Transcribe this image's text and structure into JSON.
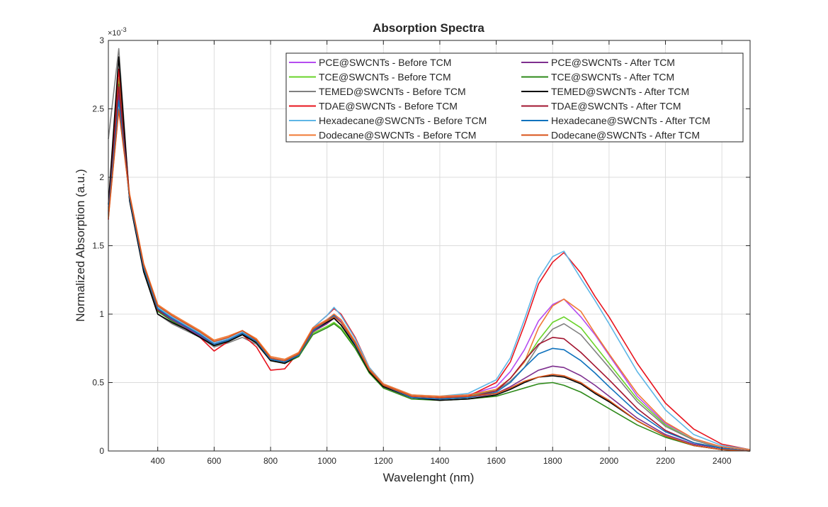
{
  "chart_data": {
    "type": "line",
    "title": "Absorption Spectra",
    "xlabel": "Wavelenght (nm)",
    "ylabel": "Normalized Absorption (a.u.)",
    "y_exponent_label": "×10",
    "y_exponent_power": "-3",
    "xlim": [
      225,
      2500
    ],
    "ylim": [
      0,
      0.003
    ],
    "x_ticks": [
      400,
      600,
      800,
      1000,
      1200,
      1400,
      1600,
      1800,
      2000,
      2200,
      2400
    ],
    "x_tick_labels": [
      "400",
      "600",
      "800",
      "1000",
      "1200",
      "1400",
      "1600",
      "1800",
      "2000",
      "2200",
      "2400"
    ],
    "y_ticks": [
      0,
      0.0005,
      0.001,
      0.0015,
      0.002,
      0.0025,
      0.003
    ],
    "y_tick_labels": [
      "0",
      "0.5",
      "1",
      "1.5",
      "2",
      "2.5",
      "3"
    ],
    "grid": true,
    "legend_position": "top-right",
    "x": [
      225,
      262,
      300,
      350,
      400,
      450,
      500,
      550,
      600,
      650,
      700,
      750,
      800,
      850,
      900,
      950,
      1000,
      1025,
      1050,
      1100,
      1150,
      1200,
      1300,
      1400,
      1500,
      1600,
      1650,
      1700,
      1750,
      1800,
      1840,
      1900,
      1950,
      2000,
      2100,
      2200,
      2300,
      2400,
      2500
    ],
    "series": [
      {
        "name": "PCE@SWCNTs - Before TCM",
        "color": "#b54cf0",
        "values": [
          0.00178,
          0.00262,
          0.00185,
          0.00135,
          0.00105,
          0.00098,
          0.00092,
          0.00086,
          0.00079,
          0.00082,
          0.00087,
          0.00081,
          0.00068,
          0.00066,
          0.00071,
          0.00089,
          0.00096,
          0.001,
          0.00095,
          0.00079,
          0.00059,
          0.00048,
          0.0004,
          0.00039,
          0.00041,
          0.00047,
          0.00058,
          0.00074,
          0.00095,
          0.00107,
          0.00111,
          0.00098,
          0.00085,
          0.0007,
          0.0004,
          0.0002,
          9e-05,
          3e-05,
          1e-05
        ]
      },
      {
        "name": "TCE@SWCNTs - Before TCM",
        "color": "#6ad42a",
        "values": [
          0.00177,
          0.00272,
          0.00186,
          0.00134,
          0.00104,
          0.00097,
          0.00091,
          0.00085,
          0.00078,
          0.00081,
          0.00086,
          0.0008,
          0.00067,
          0.00065,
          0.0007,
          0.00086,
          0.00091,
          0.00094,
          0.0009,
          0.00076,
          0.00057,
          0.00047,
          0.00039,
          0.00038,
          0.0004,
          0.00045,
          0.00053,
          0.00065,
          0.00081,
          0.00094,
          0.00098,
          0.0009,
          0.00077,
          0.00064,
          0.00038,
          0.00019,
          8e-05,
          2e-05,
          0.0
        ]
      },
      {
        "name": "TEMED@SWCNTs - Before TCM",
        "color": "#808080",
        "values": [
          0.00228,
          0.00294,
          0.00183,
          0.00132,
          0.001,
          0.00093,
          0.00088,
          0.00083,
          0.00076,
          0.00079,
          0.00083,
          0.00078,
          0.00066,
          0.00064,
          0.00069,
          0.00087,
          0.00093,
          0.00097,
          0.00092,
          0.00077,
          0.00058,
          0.00047,
          0.00039,
          0.00038,
          0.0004,
          0.00044,
          0.00051,
          0.00061,
          0.00077,
          0.00089,
          0.00093,
          0.00085,
          0.00073,
          0.00061,
          0.00036,
          0.00018,
          8e-05,
          2e-05,
          0.0
        ]
      },
      {
        "name": "TDAE@SWCNTs - Before TCM",
        "color": "#e8141e",
        "values": [
          0.00169,
          0.00279,
          0.00186,
          0.00133,
          0.00102,
          0.00096,
          0.0009,
          0.00083,
          0.00073,
          0.0008,
          0.00085,
          0.00076,
          0.00059,
          0.0006,
          0.00072,
          0.0009,
          0.00099,
          0.00104,
          0.001,
          0.00083,
          0.00061,
          0.00049,
          0.0004,
          0.00039,
          0.0004,
          0.0005,
          0.00065,
          0.00092,
          0.00122,
          0.00138,
          0.00145,
          0.0013,
          0.00113,
          0.00098,
          0.00064,
          0.00035,
          0.00016,
          5e-05,
          1e-05
        ]
      },
      {
        "name": "Hexadecane@SWCNTs - Before TCM",
        "color": "#5fb6e6",
        "values": [
          0.00176,
          0.00258,
          0.00185,
          0.00135,
          0.00105,
          0.00098,
          0.00092,
          0.00086,
          0.00079,
          0.00082,
          0.00087,
          0.00081,
          0.00068,
          0.00066,
          0.00071,
          0.0009,
          0.00099,
          0.00105,
          0.00099,
          0.00082,
          0.00061,
          0.00049,
          0.00041,
          0.0004,
          0.00042,
          0.00052,
          0.00068,
          0.00096,
          0.00126,
          0.00142,
          0.00146,
          0.00126,
          0.0011,
          0.00093,
          0.00058,
          0.0003,
          0.00012,
          4e-05,
          1e-05
        ]
      },
      {
        "name": "Dodecane@SWCNTs - Before TCM",
        "color": "#f07a34",
        "values": [
          0.0017,
          0.0025,
          0.00188,
          0.00137,
          0.00107,
          0.001,
          0.00094,
          0.00088,
          0.00081,
          0.00084,
          0.00088,
          0.00082,
          0.00069,
          0.00067,
          0.00072,
          0.0009,
          0.00096,
          0.001,
          0.00096,
          0.0008,
          0.0006,
          0.00049,
          0.00041,
          0.0004,
          0.00041,
          0.00045,
          0.00053,
          0.00065,
          0.0009,
          0.00106,
          0.00111,
          0.00102,
          0.00086,
          0.00071,
          0.00042,
          0.00021,
          9e-05,
          3e-05,
          1e-05
        ]
      },
      {
        "name": "PCE@SWCNTs - After TCM",
        "color": "#7e2f8e",
        "values": [
          0.00173,
          0.0026,
          0.00184,
          0.00134,
          0.00103,
          0.00096,
          0.0009,
          0.00084,
          0.00078,
          0.00081,
          0.00086,
          0.0008,
          0.00067,
          0.00065,
          0.0007,
          0.00087,
          0.00093,
          0.00097,
          0.00092,
          0.00077,
          0.00058,
          0.00047,
          0.00039,
          0.00038,
          0.00039,
          0.00042,
          0.00047,
          0.00053,
          0.00059,
          0.00062,
          0.00061,
          0.00055,
          0.00048,
          0.0004,
          0.00024,
          0.00012,
          5e-05,
          2e-05,
          0.0
        ]
      },
      {
        "name": "TCE@SWCNTs - After TCM",
        "color": "#2e8a1a",
        "values": [
          0.00172,
          0.00268,
          0.00184,
          0.00133,
          0.00102,
          0.00095,
          0.00089,
          0.00083,
          0.00077,
          0.0008,
          0.00085,
          0.00079,
          0.00066,
          0.00064,
          0.00069,
          0.00085,
          0.0009,
          0.00093,
          0.00089,
          0.00075,
          0.00057,
          0.00046,
          0.00038,
          0.00037,
          0.00038,
          0.0004,
          0.00043,
          0.00046,
          0.00049,
          0.0005,
          0.00048,
          0.00043,
          0.00037,
          0.00031,
          0.00019,
          0.0001,
          4e-05,
          1e-05,
          0.0
        ]
      },
      {
        "name": "TEMED@SWCNTs - After TCM",
        "color": "#000000",
        "values": [
          0.0018,
          0.00288,
          0.00183,
          0.00131,
          0.001,
          0.00094,
          0.00089,
          0.00083,
          0.00077,
          0.0008,
          0.00085,
          0.00079,
          0.00066,
          0.00064,
          0.0007,
          0.00088,
          0.00094,
          0.00097,
          0.00092,
          0.00077,
          0.00058,
          0.00047,
          0.00039,
          0.00037,
          0.00038,
          0.00041,
          0.00045,
          0.0005,
          0.00054,
          0.00055,
          0.00054,
          0.00049,
          0.00042,
          0.00036,
          0.00022,
          0.00011,
          4e-05,
          1e-05,
          0.0
        ]
      },
      {
        "name": "TDAE@SWCNTs - After TCM",
        "color": "#a2142f",
        "values": [
          0.00175,
          0.00266,
          0.00185,
          0.00134,
          0.00103,
          0.00097,
          0.00091,
          0.00085,
          0.00078,
          0.00081,
          0.00086,
          0.0008,
          0.00067,
          0.00065,
          0.0007,
          0.00088,
          0.00095,
          0.00099,
          0.00094,
          0.00078,
          0.00059,
          0.00048,
          0.00039,
          0.00038,
          0.00039,
          0.00044,
          0.00053,
          0.00066,
          0.00078,
          0.00083,
          0.00082,
          0.00072,
          0.00062,
          0.00052,
          0.00031,
          0.00015,
          6e-05,
          2e-05,
          0.0
        ]
      },
      {
        "name": "Hexadecane@SWCNTs - After TCM",
        "color": "#0f72bd",
        "values": [
          0.00174,
          0.00256,
          0.00185,
          0.00134,
          0.00104,
          0.00097,
          0.00091,
          0.00085,
          0.00078,
          0.00081,
          0.00086,
          0.0008,
          0.00067,
          0.00065,
          0.0007,
          0.00088,
          0.00095,
          0.00099,
          0.00094,
          0.00078,
          0.00059,
          0.00048,
          0.00039,
          0.00038,
          0.00039,
          0.00043,
          0.0005,
          0.00061,
          0.00071,
          0.00075,
          0.00074,
          0.00066,
          0.00057,
          0.00047,
          0.00028,
          0.00014,
          6e-05,
          2e-05,
          0.0
        ]
      },
      {
        "name": "Dodecane@SWCNTs - After TCM",
        "color": "#d95319",
        "values": [
          0.00171,
          0.00249,
          0.00187,
          0.00136,
          0.00106,
          0.00099,
          0.00093,
          0.00087,
          0.0008,
          0.00083,
          0.00088,
          0.00081,
          0.00068,
          0.00066,
          0.00071,
          0.00089,
          0.00095,
          0.00098,
          0.00094,
          0.00079,
          0.00059,
          0.00048,
          0.0004,
          0.00039,
          0.0004,
          0.00042,
          0.00046,
          0.00051,
          0.00054,
          0.00056,
          0.00055,
          0.0005,
          0.00043,
          0.00037,
          0.00022,
          0.00011,
          4e-05,
          1e-05,
          0.0
        ]
      }
    ]
  }
}
